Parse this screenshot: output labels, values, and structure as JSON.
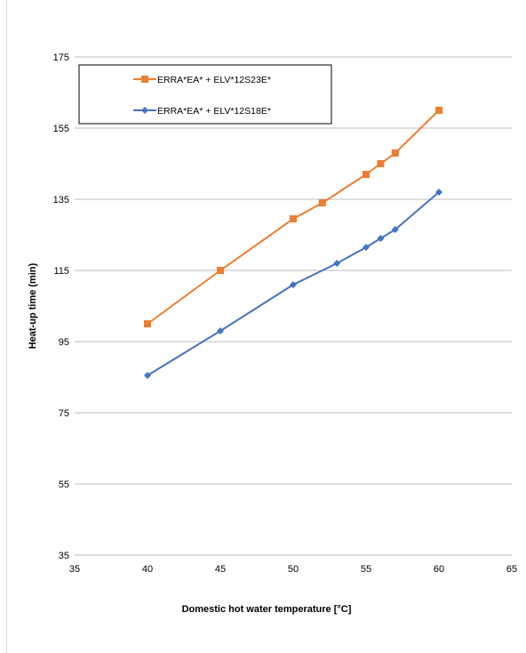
{
  "chart_data": {
    "type": "line",
    "title": "",
    "xlabel": "Domestic hot water temperature [°C]",
    "ylabel": "Heat-up time (min)",
    "xlim": [
      35,
      65
    ],
    "ylim": [
      35,
      175
    ],
    "xticks": [
      "35",
      "40",
      "45",
      "50",
      "55",
      "60",
      "65"
    ],
    "yticks": [
      "35",
      "55",
      "75",
      "95",
      "115",
      "135",
      "155",
      "175"
    ],
    "grid": "horizontal",
    "legend_position": "top-left",
    "series": [
      {
        "name": "ERRA*EA* + ELV*12S23E*",
        "color": "#ED7D31",
        "marker": "square",
        "x": [
          40,
          45,
          50,
          52,
          55,
          56,
          57,
          60
        ],
        "y": [
          100,
          115,
          129.5,
          134,
          142,
          145,
          148,
          160
        ]
      },
      {
        "name": "ERRA*EA* + ELV*12S18E*",
        "color": "#4472C4",
        "marker": "diamond",
        "x": [
          40,
          45,
          50,
          53,
          55,
          56,
          57,
          60
        ],
        "y": [
          85.5,
          98,
          111,
          117,
          121.5,
          124,
          126.5,
          137
        ]
      }
    ]
  }
}
